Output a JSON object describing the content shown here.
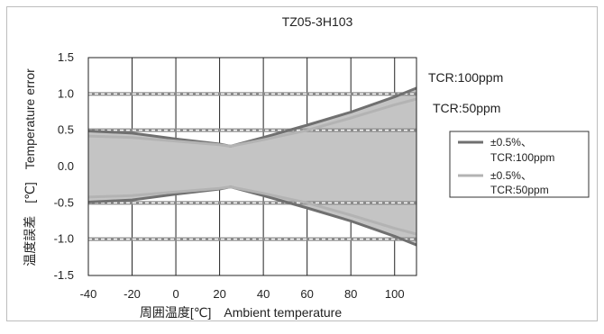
{
  "chart_data": {
    "type": "area",
    "title": "TZ05-3H103",
    "xlabel": "周囲温度[℃]　Ambient temperature",
    "ylabel": "温度誤差　[℃]　Temperature error",
    "xlim": [
      -40,
      110
    ],
    "ylim": [
      -1.5,
      1.5
    ],
    "x_ticks": [
      "-40",
      "-20",
      "0",
      "20",
      "40",
      "60",
      "80",
      "100"
    ],
    "y_ticks": [
      "1.5",
      "1.0",
      "0.5",
      "0.0",
      "-0.5",
      "-1.0",
      "-1.5"
    ],
    "grid": true,
    "dashed_reference_lines": [
      1.0,
      0.5,
      -0.5,
      -1.0
    ],
    "annotations": [
      "TCR:100ppm",
      "TCR:50ppm"
    ],
    "series": [
      {
        "legend": [
          "±0.5%、",
          "TCR:100ppm"
        ],
        "color": "#707070",
        "x": [
          -40,
          -20,
          0,
          20,
          25,
          40,
          60,
          80,
          100,
          110
        ],
        "upper": [
          0.49,
          0.46,
          0.38,
          0.31,
          0.28,
          0.4,
          0.57,
          0.75,
          0.96,
          1.08
        ],
        "lower": [
          -0.49,
          -0.46,
          -0.38,
          -0.31,
          -0.28,
          -0.4,
          -0.57,
          -0.75,
          -0.96,
          -1.08
        ]
      },
      {
        "legend": [
          "±0.5%、",
          "TCR:50ppm"
        ],
        "color": "#b3b3b3",
        "x": [
          -40,
          -20,
          0,
          20,
          25,
          40,
          60,
          80,
          100,
          110
        ],
        "upper": [
          0.42,
          0.4,
          0.35,
          0.3,
          0.28,
          0.37,
          0.5,
          0.67,
          0.85,
          0.93
        ],
        "lower": [
          -0.42,
          -0.4,
          -0.35,
          -0.3,
          -0.28,
          -0.37,
          -0.5,
          -0.67,
          -0.85,
          -0.93
        ]
      }
    ]
  }
}
